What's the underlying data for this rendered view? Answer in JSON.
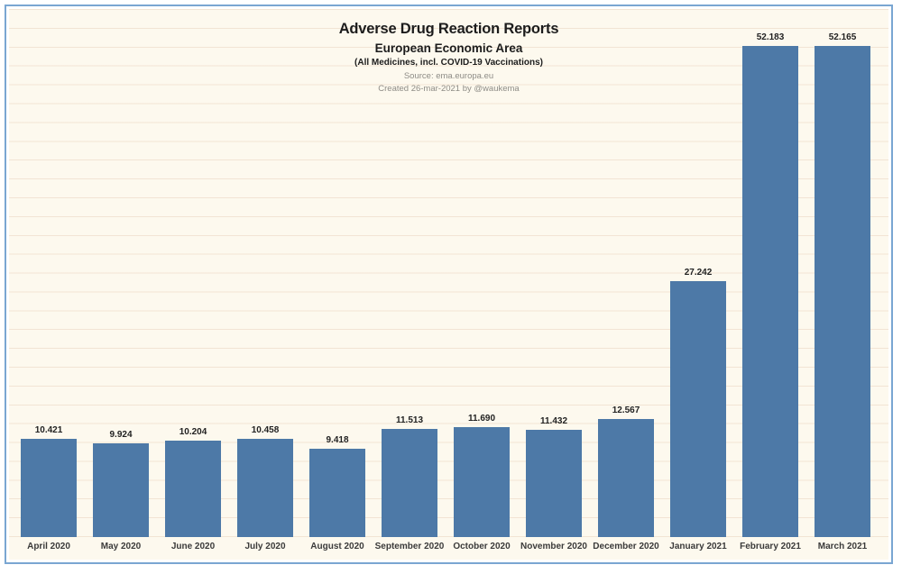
{
  "header": {
    "title": "Adverse Drug Reaction Reports",
    "subtitle": "European Economic Area",
    "note": "(All Medicines, incl. COVID-19 Vaccinations)",
    "source": "Source: ema.europa.eu",
    "credit": "Created 26-mar-2021 by @waukema"
  },
  "chart_data": {
    "type": "bar",
    "title": "Adverse Drug Reaction Reports",
    "subtitle": "European Economic Area",
    "note": "(All Medicines, incl. COVID-19 Vaccinations)",
    "source": "Source: ema.europa.eu",
    "credit": "Created 26-mar-2021 by @waukema",
    "categories": [
      "April 2020",
      "May 2020",
      "June 2020",
      "July 2020",
      "August 2020",
      "September 2020",
      "October 2020",
      "November 2020",
      "December 2020",
      "January 2021",
      "February 2021",
      "March 2021"
    ],
    "values": [
      10421,
      9924,
      10204,
      10458,
      9418,
      11513,
      11690,
      11432,
      12567,
      27242,
      52183,
      52165
    ],
    "value_labels": [
      "10.421",
      "9.924",
      "10.204",
      "10.458",
      "9.418",
      "11.513",
      "11.690",
      "11.432",
      "12.567",
      "27.242",
      "52.183",
      "52.165"
    ],
    "xlabel": "",
    "ylabel": "",
    "ylim": [
      0,
      52183
    ],
    "grid_step": 2000,
    "grid_on": true,
    "legend": "none",
    "colors": {
      "bar": "#4d79a7",
      "background": "#fdf9ee",
      "frame_border": "#7aa6d2",
      "gridline": "rgba(222,190,165,0.35)",
      "title_text": "#1c1c1c",
      "muted_text": "#8e8c86"
    }
  }
}
